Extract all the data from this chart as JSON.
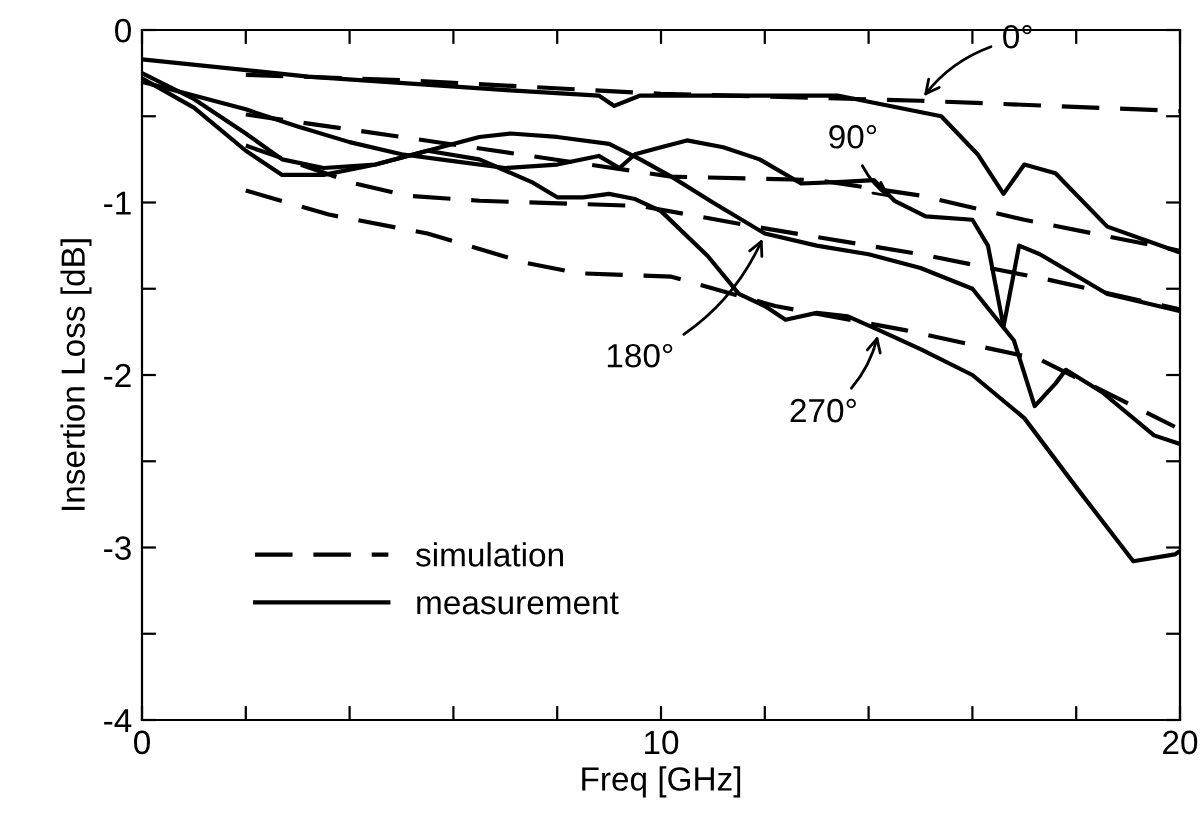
{
  "chart_data": {
    "type": "line",
    "xlabel": "Freq [GHz]",
    "ylabel": "Insertion Loss [dB]",
    "xlim": [
      0,
      20
    ],
    "ylim": [
      -4,
      0
    ],
    "xticks": [
      0,
      {
        "value": 2,
        "label": null
      },
      {
        "value": 4,
        "label": null
      },
      {
        "value": 6,
        "label": null
      },
      {
        "value": 8,
        "label": null
      },
      10,
      {
        "value": 12,
        "label": null
      },
      {
        "value": 14,
        "label": null
      },
      {
        "value": 16,
        "label": null
      },
      {
        "value": 18,
        "label": null
      },
      20
    ],
    "yticks": [
      -4,
      {
        "value": -3.5,
        "label": null
      },
      -3,
      {
        "value": -2.5,
        "label": null
      },
      -2,
      {
        "value": -1.5,
        "label": null
      },
      -1,
      {
        "value": -0.5,
        "label": null
      },
      0
    ],
    "grid": false,
    "legend": "bottom left",
    "marker": "none",
    "series": [
      {
        "name": "simulation",
        "color": "#000000",
        "line_style": "dashed",
        "x": [
          2,
          5,
          10,
          15,
          20
        ],
        "values": [
          -0.26,
          -0.29,
          -0.37,
          -0.41,
          -0.47
        ]
      },
      {
        "color": "#000000",
        "line_style": "dashed",
        "x": [
          2,
          5,
          10.2,
          13,
          15,
          17,
          20
        ],
        "values": [
          -0.49,
          -0.62,
          -0.85,
          -0.87,
          -0.96,
          -1.1,
          -1.28
        ]
      },
      {
        "color": "#000000",
        "line_style": "dashed",
        "x": [
          2,
          4.1,
          5.1,
          6.5,
          9.6,
          12,
          15,
          17.5,
          20
        ],
        "values": [
          -0.67,
          -0.89,
          -0.96,
          -0.99,
          -1.02,
          -1.15,
          -1.3,
          -1.45,
          -1.62
        ]
      },
      {
        "color": "#000000",
        "line_style": "dashed",
        "x": [
          2,
          3.6,
          5.5,
          7.4,
          8.4,
          10.2,
          10.9,
          12.2,
          14.7,
          17.3,
          19.9
        ],
        "values": [
          -0.93,
          -1.07,
          -1.18,
          -1.35,
          -1.41,
          -1.43,
          -1.49,
          -1.6,
          -1.74,
          -1.91,
          -2.3
        ]
      },
      {
        "name": "measurement",
        "color": "#000000",
        "line_style": "solid",
        "x": [
          0,
          3.2,
          7.1,
          8.8,
          9.1,
          9.6,
          13.4,
          15.4,
          16.1,
          16.6,
          17,
          17.6,
          18.6,
          20
        ],
        "values": [
          -0.17,
          -0.27,
          -0.35,
          -0.38,
          -0.44,
          -0.38,
          -0.38,
          -0.5,
          -0.72,
          -0.95,
          -0.78,
          -0.83,
          -1.14,
          -1.29
        ]
      },
      {
        "color": "#000000",
        "line_style": "solid",
        "x": [
          0,
          1,
          2,
          3,
          4,
          5,
          6,
          7,
          8,
          8.8,
          9.2,
          9.5,
          10,
          10.5,
          11.2,
          11.9,
          12.7,
          13.5,
          14.1,
          14.5,
          15.1,
          16,
          16.3,
          16.6,
          16.9,
          17.3,
          18.6,
          20
        ],
        "values": [
          -0.3,
          -0.38,
          -0.46,
          -0.56,
          -0.65,
          -0.72,
          -0.76,
          -0.8,
          -0.78,
          -0.73,
          -0.8,
          -0.72,
          -0.68,
          -0.64,
          -0.68,
          -0.75,
          -0.89,
          -0.88,
          -0.87,
          -0.99,
          -1.08,
          -1.1,
          -1.25,
          -1.72,
          -1.25,
          -1.3,
          -1.53,
          -1.63
        ]
      },
      {
        "color": "#000000",
        "line_style": "solid",
        "x": [
          0,
          1,
          2,
          2.7,
          3.5,
          4.5,
          5.5,
          6.5,
          7.1,
          8,
          9,
          9.6,
          10.2,
          11,
          12,
          13,
          14,
          15,
          16,
          16.8,
          17.2,
          17.6,
          17.8,
          18.5,
          19.5,
          20
        ],
        "values": [
          -0.28,
          -0.45,
          -0.7,
          -0.84,
          -0.84,
          -0.78,
          -0.7,
          -0.62,
          -0.6,
          -0.62,
          -0.66,
          -0.75,
          -0.85,
          -1.0,
          -1.18,
          -1.25,
          -1.3,
          -1.38,
          -1.5,
          -1.8,
          -2.18,
          -2.05,
          -1.97,
          -2.1,
          -2.35,
          -2.4
        ]
      },
      {
        "color": "#000000",
        "line_style": "solid",
        "x": [
          0,
          1,
          2,
          2.7,
          3.5,
          4.5,
          5.5,
          6.5,
          7.5,
          8,
          8.5,
          9,
          9.5,
          10,
          10.9,
          11.5,
          12,
          12.4,
          13,
          13.6,
          14.2,
          15,
          16,
          17,
          18,
          19.1,
          19.9,
          20
        ],
        "values": [
          -0.25,
          -0.4,
          -0.6,
          -0.75,
          -0.8,
          -0.78,
          -0.7,
          -0.75,
          -0.88,
          -0.97,
          -0.97,
          -0.95,
          -0.98,
          -1.05,
          -1.31,
          -1.53,
          -1.6,
          -1.68,
          -1.64,
          -1.66,
          -1.74,
          -1.85,
          -2.0,
          -2.25,
          -2.65,
          -3.08,
          -3.04,
          -3.02
        ]
      }
    ],
    "annotations": [
      {
        "text": "0°",
        "x": 15,
        "y": -0.41
      },
      {
        "text": "90°",
        "x": 14.5,
        "y": -0.99
      },
      {
        "text": "180°",
        "x": 12,
        "y": -1.18
      },
      {
        "text": "270°",
        "x": 14.2,
        "y": -1.74
      }
    ]
  }
}
